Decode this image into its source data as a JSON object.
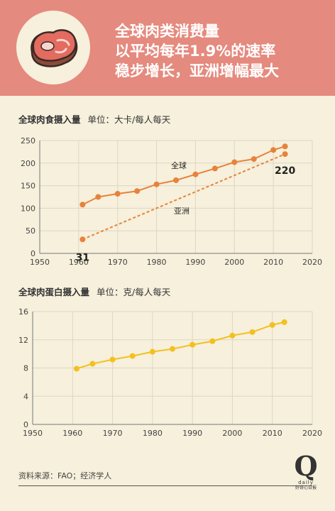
{
  "header": {
    "headline_lines": [
      "全球肉类消费量",
      "以平均每年1.9%的速率",
      "稳步增长，亚洲增幅最大"
    ],
    "icon": "steak-icon"
  },
  "chart1_heading": {
    "title": "全球肉食摄入量",
    "unit": "单位：大卡/每人每天"
  },
  "chart2_heading": {
    "title": "全球肉蛋白摄入量",
    "unit": "单位：克/每人每天"
  },
  "colors": {
    "header": "#e58a7e",
    "background": "#f6f0dc",
    "meat_series": "#e8823a",
    "protein_series": "#f4c01e"
  },
  "chart_data": [
    {
      "type": "line",
      "title": "全球肉食摄入量",
      "unit": "单位：大卡/每人每天",
      "xlim": [
        1950,
        2020
      ],
      "ylim": [
        0,
        250
      ],
      "xticks": [
        "1950",
        "1960",
        "1970",
        "1980",
        "1990",
        "2000",
        "2010",
        "2020"
      ],
      "yticks": [
        "0",
        "50",
        "100",
        "150",
        "200",
        "250"
      ],
      "grid": true,
      "series": [
        {
          "name": "全球",
          "style": "solid",
          "x": [
            1961,
            1965,
            1970,
            1975,
            1980,
            1985,
            1990,
            1995,
            2000,
            2005,
            2010,
            2013
          ],
          "values": [
            108,
            125,
            132,
            138,
            153,
            162,
            175,
            188,
            202,
            209,
            229,
            237
          ]
        },
        {
          "name": "亚洲",
          "style": "dashed",
          "x": [
            1961,
            2013
          ],
          "values": [
            31,
            220
          ],
          "point_labels": [
            "31",
            "220"
          ]
        }
      ]
    },
    {
      "type": "line",
      "title": "全球肉蛋白摄入量",
      "unit": "单位：克/每人每天",
      "xlim": [
        1950,
        2020
      ],
      "ylim": [
        0,
        16
      ],
      "xticks": [
        "1950",
        "1960",
        "1970",
        "1980",
        "1990",
        "2000",
        "2010",
        "2020"
      ],
      "yticks": [
        "0",
        "4",
        "8",
        "12",
        "16"
      ],
      "grid": true,
      "series": [
        {
          "name": "",
          "style": "solid",
          "x": [
            1961,
            1965,
            1970,
            1975,
            1980,
            1985,
            1990,
            1995,
            2000,
            2005,
            2010,
            2013
          ],
          "values": [
            7.9,
            8.6,
            9.2,
            9.7,
            10.3,
            10.7,
            11.3,
            11.8,
            12.6,
            13.1,
            14.1,
            14.5
          ]
        }
      ]
    }
  ],
  "footer": {
    "source": "资料来源：FAO；经济学人",
    "brand_letter": "Q",
    "brand_name": "daily",
    "brand_tag": "好奇心日报"
  }
}
